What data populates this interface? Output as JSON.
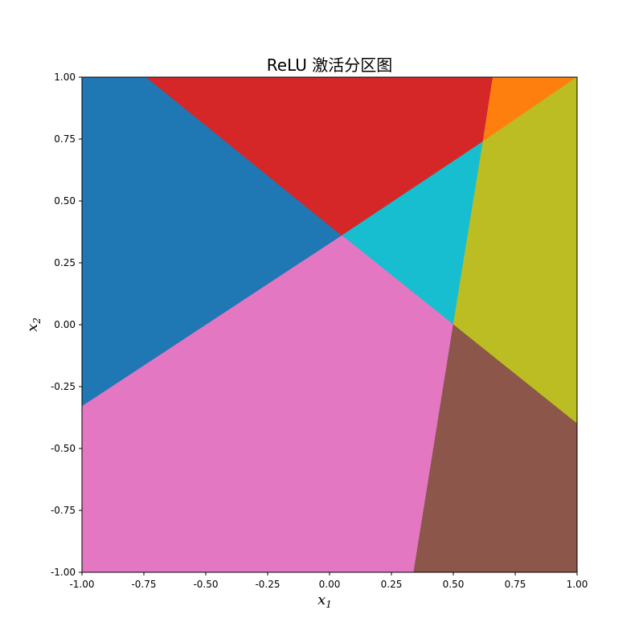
{
  "chart_data": {
    "type": "heatmap",
    "title": "ReLU 激活分区图",
    "xlabel": "x",
    "xlabel_sub": "1",
    "ylabel": "x",
    "ylabel_sub": "2",
    "xlim": [
      -1.0,
      1.0
    ],
    "ylim": [
      -1.0,
      1.0
    ],
    "xticks": [
      -1.0,
      -0.75,
      -0.5,
      -0.25,
      0.0,
      0.25,
      0.5,
      0.75,
      1.0
    ],
    "yticks": [
      -1.0,
      -0.75,
      -0.5,
      -0.25,
      0.0,
      0.25,
      0.5,
      0.75,
      1.0
    ],
    "xtick_labels": [
      "-1.00",
      "-0.75",
      "-0.50",
      "-0.25",
      "0.00",
      "0.25",
      "0.50",
      "0.75",
      "1.00"
    ],
    "ytick_labels": [
      "-1.00",
      "-0.75",
      "-0.50",
      "-0.25",
      "0.00",
      "0.25",
      "0.50",
      "0.75",
      "1.00"
    ],
    "grid": false,
    "regions": [
      {
        "color": "#1f77b4",
        "polygon": [
          [
            -1.0,
            1.0
          ],
          [
            -0.74,
            1.0
          ],
          [
            0.05,
            0.36
          ],
          [
            -1.0,
            -0.33
          ]
        ]
      },
      {
        "color": "#d62728",
        "polygon": [
          [
            -0.74,
            1.0
          ],
          [
            0.66,
            1.0
          ],
          [
            0.62,
            0.74
          ],
          [
            0.05,
            0.36
          ]
        ]
      },
      {
        "color": "#ff7f0e",
        "polygon": [
          [
            0.66,
            1.0
          ],
          [
            1.0,
            1.0
          ],
          [
            0.62,
            0.74
          ]
        ]
      },
      {
        "color": "#17becf",
        "polygon": [
          [
            0.05,
            0.36
          ],
          [
            0.62,
            0.74
          ],
          [
            0.5,
            0.0
          ]
        ]
      },
      {
        "color": "#bcbd22",
        "polygon": [
          [
            0.62,
            0.74
          ],
          [
            1.0,
            1.0
          ],
          [
            1.0,
            -0.4
          ],
          [
            0.5,
            0.0
          ]
        ]
      },
      {
        "color": "#e377c2",
        "polygon": [
          [
            -1.0,
            -0.33
          ],
          [
            0.05,
            0.36
          ],
          [
            0.5,
            0.0
          ],
          [
            0.34,
            -1.0
          ],
          [
            -1.0,
            -1.0
          ]
        ]
      },
      {
        "color": "#8c564b",
        "polygon": [
          [
            0.5,
            0.0
          ],
          [
            1.0,
            -0.4
          ],
          [
            1.0,
            -1.0
          ],
          [
            0.34,
            -1.0
          ]
        ]
      }
    ]
  }
}
